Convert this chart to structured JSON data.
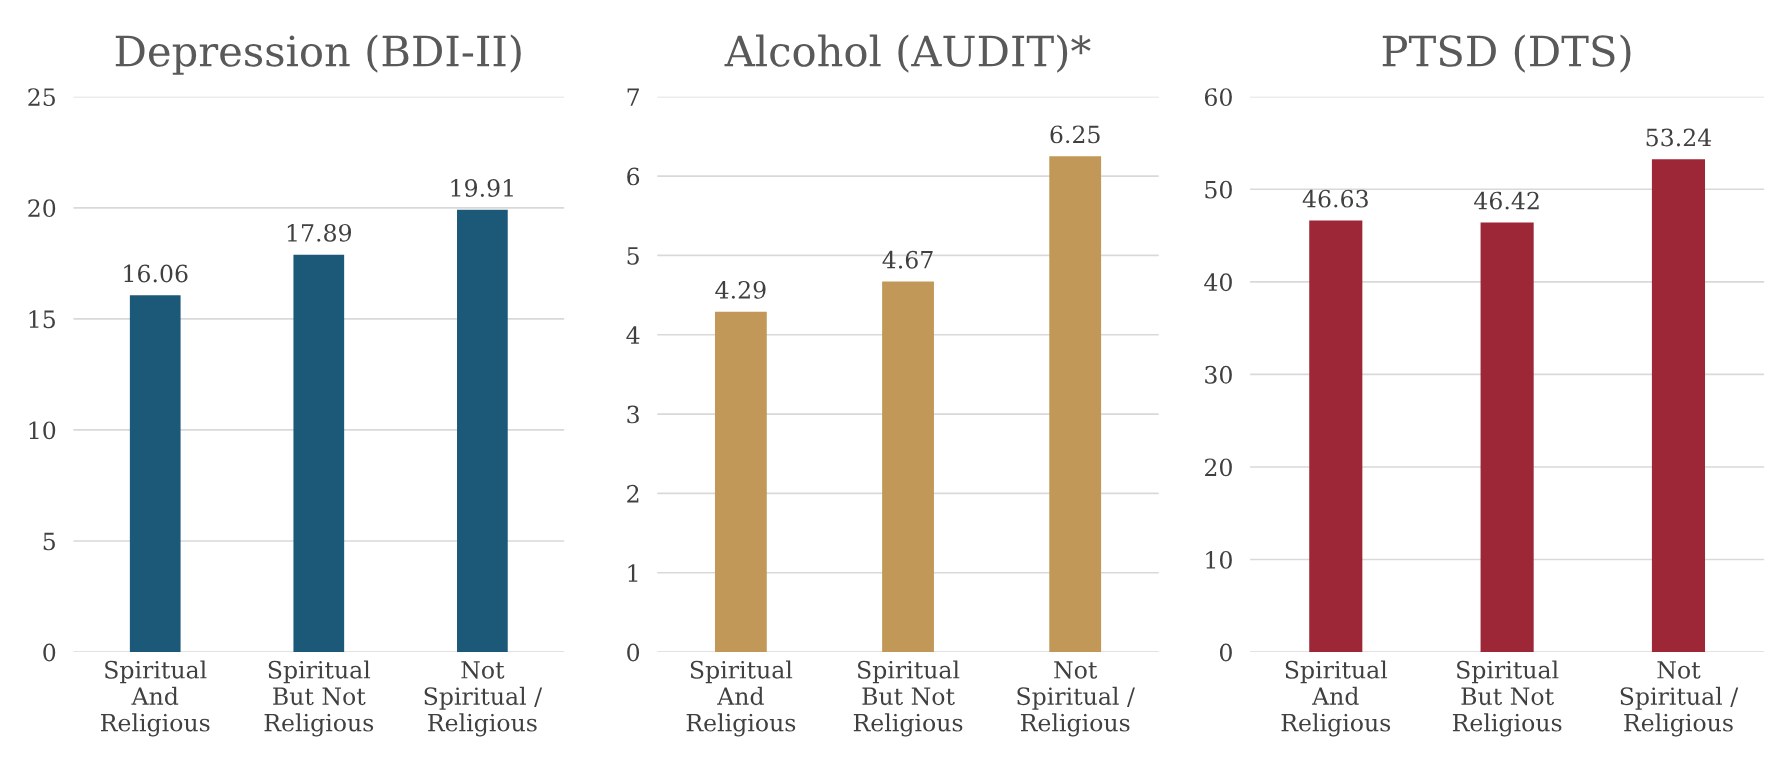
{
  "chart_data": [
    {
      "type": "bar",
      "title": "Depression (BDI-II)",
      "categories": [
        "Spiritual\nAnd\nReligious",
        "Spiritual\nBut Not\nReligious",
        "Not\nSpiritual /\nReligious"
      ],
      "values": [
        16.06,
        17.89,
        19.91
      ],
      "color": "#1c5878",
      "ylim": [
        0,
        25
      ],
      "yticks": [
        0,
        5,
        10,
        15,
        20,
        25
      ],
      "grid": "y",
      "data_labels": true
    },
    {
      "type": "bar",
      "title": "Alcohol (AUDIT)*",
      "categories": [
        "Spiritual\nAnd\nReligious",
        "Spiritual\nBut Not\nReligious",
        "Not\nSpiritual /\nReligious"
      ],
      "values": [
        4.29,
        4.67,
        6.25
      ],
      "color": "#c19858",
      "ylim": [
        0,
        7
      ],
      "yticks": [
        0,
        1,
        2,
        3,
        4,
        5,
        6,
        7
      ],
      "grid": "y",
      "data_labels": true
    },
    {
      "type": "bar",
      "title": "PTSD (DTS)",
      "categories": [
        "Spiritual\nAnd\nReligious",
        "Spiritual\nBut Not\nReligious",
        "Not\nSpiritual /\nReligious"
      ],
      "values": [
        46.63,
        46.42,
        53.24
      ],
      "color": "#9e2737",
      "ylim": [
        0,
        60
      ],
      "yticks": [
        0,
        10,
        20,
        30,
        40,
        50,
        60
      ],
      "grid": "y",
      "data_labels": true
    }
  ]
}
